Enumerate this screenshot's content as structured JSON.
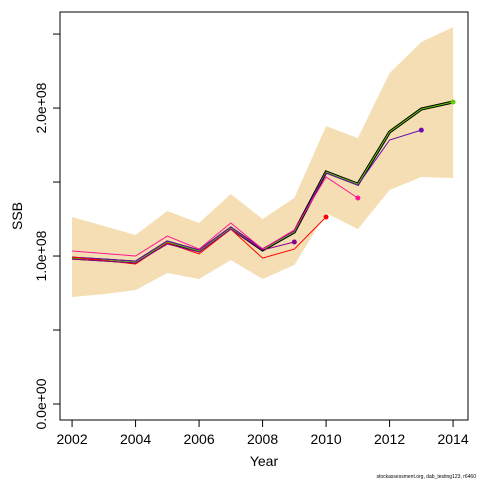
{
  "chart_data": {
    "type": "line",
    "xlabel": "Year",
    "ylabel": "SSB",
    "footnote": "stockassessment.org, dab_testing123, r6460",
    "x": [
      2002,
      2003,
      2004,
      2005,
      2006,
      2007,
      2008,
      2009,
      2010,
      2011,
      2012,
      2013,
      2014
    ],
    "band": {
      "color": "#f5deb3",
      "upper": [
        126400000,
        120300000,
        114200000,
        130400000,
        122300000,
        141900000,
        125000000,
        139200000,
        187800000,
        179700000,
        223600000,
        244600000,
        254700000
      ],
      "lower": [
        72300000,
        74300000,
        77000000,
        88500000,
        84500000,
        97300000,
        84500000,
        93900000,
        129100000,
        118200000,
        144600000,
        153400000,
        152700000
      ]
    },
    "series": [
      {
        "color": "#000000",
        "values": [
          98600000,
          97300000,
          95900000,
          109500000,
          103400000,
          118900000,
          104100000,
          116200000,
          156800000,
          148600000,
          183800000,
          199300000,
          204100000
        ]
      },
      {
        "color": "#66cc00",
        "values": [
          98600000,
          97300000,
          95900000,
          109500000,
          103400000,
          118900000,
          104100000,
          116200000,
          156800000,
          148600000,
          183800000,
          199300000,
          204100000
        ]
      },
      {
        "color": "#6a0dad",
        "values": [
          99300000,
          98000000,
          96600000,
          110100000,
          104100000,
          119600000,
          104700000,
          116900000,
          156100000,
          147900000,
          178400000,
          185100000,
          null
        ]
      },
      {
        "color": "#ff1493",
        "values": [
          103400000,
          101700000,
          100000000,
          113500000,
          104700000,
          122300000,
          104700000,
          117600000,
          153400000,
          139200000,
          null,
          null,
          null
        ]
      },
      {
        "color": "#ff0000",
        "values": [
          99300000,
          97000000,
          94600000,
          108800000,
          101400000,
          118200000,
          98600000,
          104700000,
          126400000,
          null,
          null,
          null,
          null
        ]
      },
      {
        "color": "#8b008b",
        "values": [
          98000000,
          96600000,
          95300000,
          108100000,
          102700000,
          118200000,
          104100000,
          109500000,
          null,
          null,
          null,
          null,
          null
        ]
      }
    ],
    "xlim": [
      2001.62,
      2014.47
    ],
    "ylim": [
      -10800000,
      264900000
    ],
    "xticks": [
      2002,
      2004,
      2006,
      2008,
      2010,
      2012,
      2014
    ],
    "yticks": [
      {
        "value": 0,
        "label": "0.0e+00"
      },
      {
        "value": 50000000,
        "label": null
      },
      {
        "value": 100000000,
        "label": "1.0e+08"
      },
      {
        "value": 150000000,
        "label": null
      },
      {
        "value": 200000000,
        "label": "2.0e+08"
      },
      {
        "value": 250000000,
        "label": null
      }
    ]
  }
}
